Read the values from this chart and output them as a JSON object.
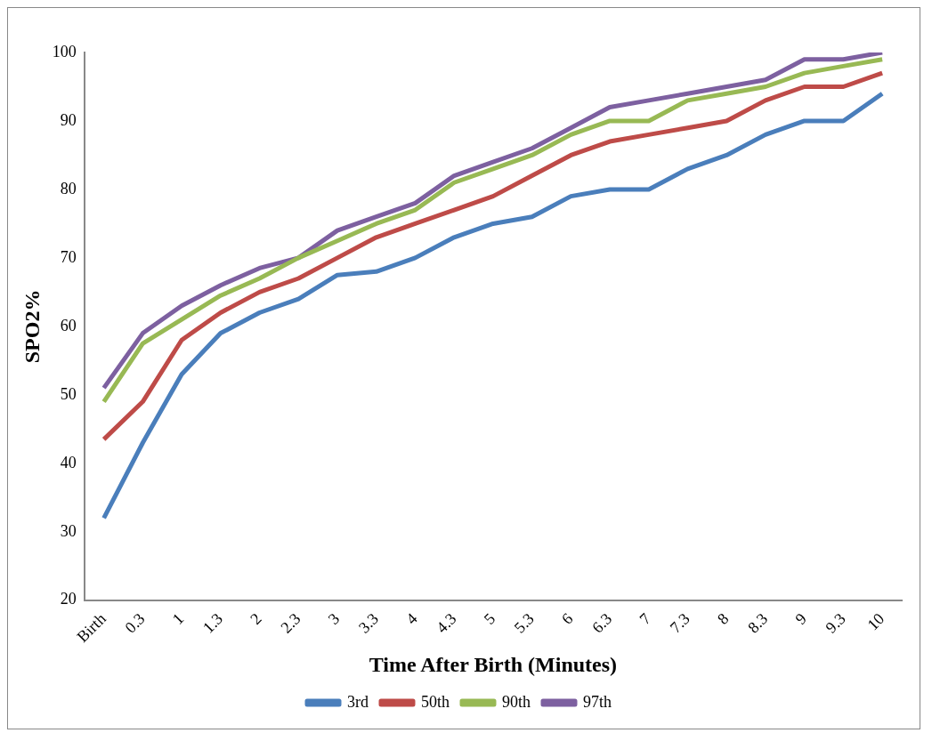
{
  "chart_data": {
    "type": "line",
    "xlabel": "Time After Birth (Minutes)",
    "ylabel": "SPO2%",
    "categories": [
      "Birth",
      "0.3",
      "1",
      "1.3",
      "2",
      "2.3",
      "3",
      "3.3",
      "4",
      "4.3",
      "5",
      "5.3",
      "6",
      "6.3",
      "7",
      "7.3",
      "8",
      "8.3",
      "9",
      "9.3",
      "10"
    ],
    "series": [
      {
        "name": "3rd",
        "color": "#4a7ebb",
        "values": [
          32,
          43,
          53,
          59,
          62,
          64,
          67.5,
          68,
          70,
          73,
          75,
          76,
          79,
          80,
          80,
          83,
          85,
          88,
          90,
          90,
          94
        ]
      },
      {
        "name": "50th",
        "color": "#be4b48",
        "values": [
          43.5,
          49,
          58,
          62,
          65,
          67,
          70,
          73,
          75,
          77,
          79,
          82,
          85,
          87,
          88,
          89,
          90,
          93,
          95,
          95,
          97
        ]
      },
      {
        "name": "90th",
        "color": "#98b954",
        "values": [
          49,
          57.5,
          61,
          64.5,
          67,
          70,
          72.5,
          75,
          77,
          81,
          83,
          85,
          88,
          90,
          90,
          93,
          94,
          95,
          97,
          98,
          99
        ]
      },
      {
        "name": "97th",
        "color": "#7d60a0",
        "values": [
          51,
          59,
          63,
          66,
          68.5,
          70,
          74,
          76,
          78,
          82,
          84,
          86,
          89,
          92,
          93,
          94,
          95,
          96,
          99,
          99,
          100
        ]
      }
    ],
    "ylim": [
      20,
      100
    ],
    "yticks": [
      20,
      30,
      40,
      50,
      60,
      70,
      80,
      90,
      100
    ],
    "grid": false,
    "legend": "bottom",
    "marker": "none",
    "line_style": "solid"
  }
}
